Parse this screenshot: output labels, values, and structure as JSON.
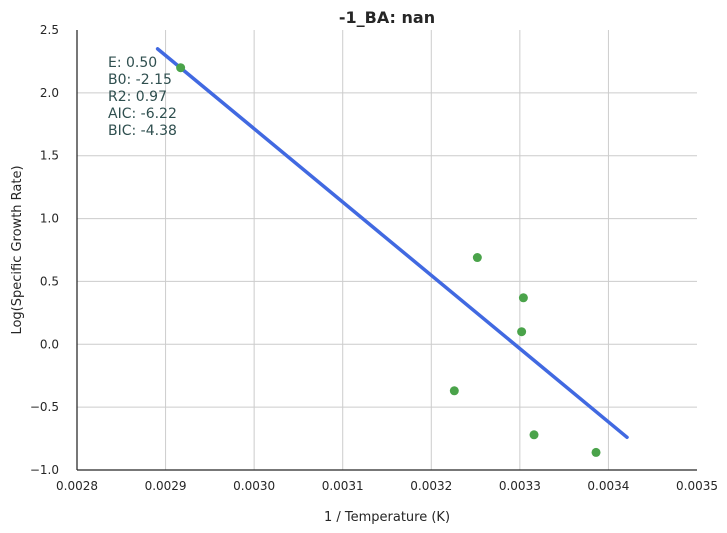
{
  "chart_data": {
    "type": "scatter",
    "title": "-1_BA: nan",
    "xlabel": "1 / Temperature (K)",
    "ylabel": "Log(Specific Growth Rate)",
    "xlim": [
      0.0028,
      0.0035
    ],
    "ylim": [
      -1.0,
      2.5
    ],
    "xticks": [
      "0.0028",
      "0.0029",
      "0.0030",
      "0.0031",
      "0.0032",
      "0.0033",
      "0.0034",
      "0.0035"
    ],
    "yticks": [
      "−1.0",
      "−0.5",
      "0.0",
      "0.5",
      "1.0",
      "1.5",
      "2.0",
      "2.5"
    ],
    "grid": true,
    "points": {
      "color": "#4aa34a",
      "x": [
        0.002917,
        0.003226,
        0.003252,
        0.003302,
        0.003304,
        0.003316,
        0.003386
      ],
      "y": [
        2.2,
        -0.37,
        0.69,
        0.1,
        0.37,
        -0.72,
        -0.86
      ]
    },
    "fit_line": {
      "color": "#4169e1",
      "x": [
        0.002891,
        0.003421
      ],
      "y": [
        2.35,
        -0.74
      ]
    },
    "annotations": [
      "E:  0.50",
      "B0:  -2.15",
      "R2:  0.97",
      "AIC: -6.22",
      "BIC: -4.38"
    ]
  }
}
